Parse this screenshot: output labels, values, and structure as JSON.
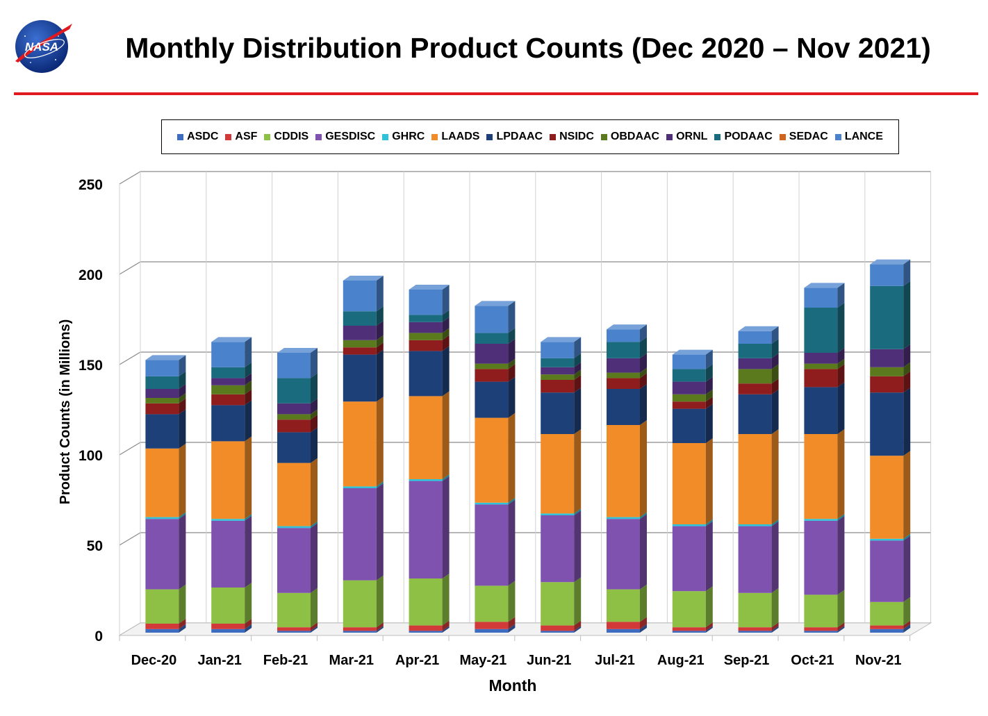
{
  "header": {
    "logo_text": "NASA",
    "title": "Monthly Distribution Product Counts (Dec 2020 – Nov 2021)"
  },
  "colors": {
    "rule": "#e0191e",
    "grid": "#b5b5b5"
  },
  "chart_data": {
    "type": "bar",
    "stacked": true,
    "title": "Monthly Distribution Product Counts (Dec 2020 – Nov 2021)",
    "xlabel": "Month",
    "ylabel": "Product Counts (in Millions)",
    "ylim": [
      0,
      250
    ],
    "yticks": [
      0,
      50,
      100,
      150,
      200,
      250
    ],
    "grid": true,
    "legend_position": "top",
    "categories": [
      "Dec-20",
      "Jan-21",
      "Feb-21",
      "Mar-21",
      "Apr-21",
      "May-21",
      "Jun-21",
      "Jul-21",
      "Aug-21",
      "Sep-21",
      "Oct-21",
      "Nov-21"
    ],
    "series": [
      {
        "name": "ASDC",
        "color": "#3d6cc0",
        "values": [
          2,
          2,
          1,
          1,
          1,
          2,
          1,
          2,
          1,
          1,
          1,
          2
        ]
      },
      {
        "name": "ASF",
        "color": "#d23a3a",
        "values": [
          3,
          3,
          2,
          2,
          3,
          4,
          3,
          4,
          2,
          2,
          2,
          2
        ]
      },
      {
        "name": "CDDIS",
        "color": "#8dc044",
        "values": [
          19,
          20,
          19,
          26,
          26,
          20,
          24,
          18,
          20,
          19,
          18,
          13
        ]
      },
      {
        "name": "GESDISC",
        "color": "#8052b0",
        "values": [
          39,
          37,
          36,
          51,
          54,
          45,
          37,
          39,
          36,
          37,
          41,
          34
        ]
      },
      {
        "name": "GHRC",
        "color": "#2ec3d8",
        "values": [
          1,
          1,
          1,
          1,
          1,
          1,
          1,
          1,
          1,
          1,
          1,
          1
        ]
      },
      {
        "name": "LAADS",
        "color": "#f28c28",
        "values": [
          38,
          43,
          35,
          47,
          46,
          47,
          44,
          51,
          45,
          50,
          47,
          46
        ]
      },
      {
        "name": "LPDAAC",
        "color": "#1e4079",
        "values": [
          19,
          20,
          17,
          26,
          25,
          20,
          23,
          20,
          19,
          22,
          26,
          35
        ]
      },
      {
        "name": "NSIDC",
        "color": "#8f1d1d",
        "values": [
          6,
          6,
          7,
          4,
          6,
          7,
          7,
          6,
          4,
          6,
          10,
          9
        ]
      },
      {
        "name": "OBDAAC",
        "color": "#5b7a1e",
        "values": [
          3,
          5,
          3,
          4,
          4,
          3,
          3,
          3,
          4,
          8,
          3,
          5
        ]
      },
      {
        "name": "ORNL",
        "color": "#4e2f78",
        "values": [
          5,
          4,
          6,
          8,
          6,
          11,
          4,
          8,
          7,
          6,
          6,
          10
        ]
      },
      {
        "name": "PODAAC",
        "color": "#1b6b7f",
        "values": [
          7,
          6,
          14,
          8,
          4,
          6,
          5,
          9,
          7,
          8,
          25,
          35
        ]
      },
      {
        "name": "SEDAC",
        "color": "#d0641e",
        "values": [
          0,
          0,
          0,
          0,
          0,
          0,
          0,
          0,
          0,
          0,
          0,
          0
        ]
      },
      {
        "name": "LANCE",
        "color": "#4a82cc",
        "values": [
          9,
          14,
          14,
          17,
          14,
          15,
          9,
          7,
          8,
          7,
          11,
          12
        ]
      }
    ]
  }
}
